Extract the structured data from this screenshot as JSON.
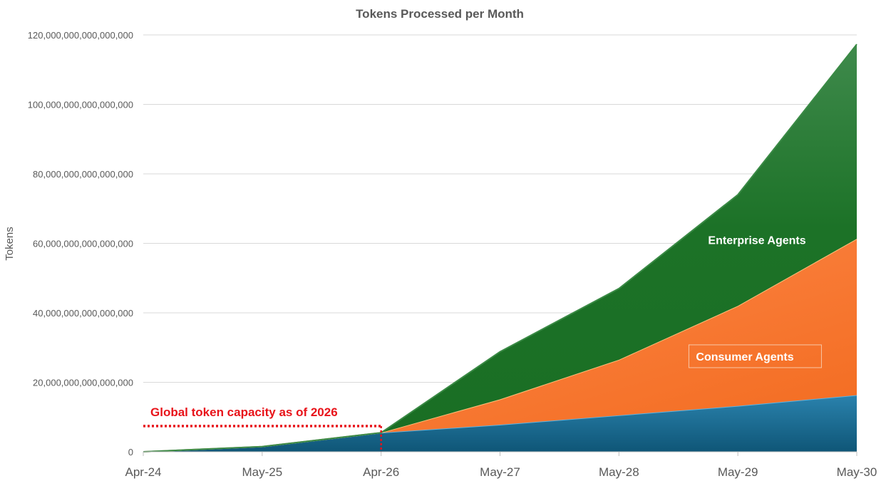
{
  "chart_data": {
    "type": "area",
    "stacked": true,
    "title": "Tokens Processed per Month",
    "ylabel": "Tokens",
    "xlabel": "",
    "categories": [
      "Apr-24",
      "May-25",
      "Apr-26",
      "May-27",
      "May-28",
      "May-29",
      "May-30"
    ],
    "x_positions": [
      0,
      1,
      2,
      3,
      4,
      5,
      6
    ],
    "ylim": [
      0,
      120000000000000000
    ],
    "yticks": [
      0,
      20000000000000000,
      40000000000000000,
      60000000000000000,
      80000000000000000,
      100000000000000000,
      120000000000000000
    ],
    "ytick_labels": [
      "0",
      "20,000,000,000,000,000",
      "40,000,000,000,000,000",
      "60,000,000,000,000,000",
      "80,000,000,000,000,000",
      "100,000,000,000,000,000",
      "120,000,000,000,000,000"
    ],
    "grid": true,
    "legend": "none",
    "series": [
      {
        "name": "",
        "color": "#1b6b8f",
        "values": [
          0,
          1500000000000000,
          5500000000000000,
          7800000000000000,
          10500000000000000,
          13200000000000000,
          16300000000000000
        ]
      },
      {
        "name": "Consumer Agents",
        "color": "#f36e25",
        "values": [
          0,
          0,
          0,
          7300000000000000,
          16000000000000000,
          28800000000000000,
          45000000000000000
        ]
      },
      {
        "name": "Enterprise Agents",
        "color": "#1d7326",
        "values": [
          0,
          0,
          0,
          13700000000000000,
          20500000000000000,
          32000000000000000,
          56000000000000000
        ]
      }
    ],
    "annotations": [
      {
        "text": "Enterprise Agents",
        "x": 4.6,
        "y": 61000000000000000
      },
      {
        "text": "Consumer Agents",
        "x": 4.6,
        "y": 27500000000000000,
        "boxed": true
      }
    ],
    "capacity": {
      "text": "Global token capacity as of 2026",
      "value": 7400000000000000,
      "x_end": 2,
      "color": "#e8131a"
    }
  }
}
